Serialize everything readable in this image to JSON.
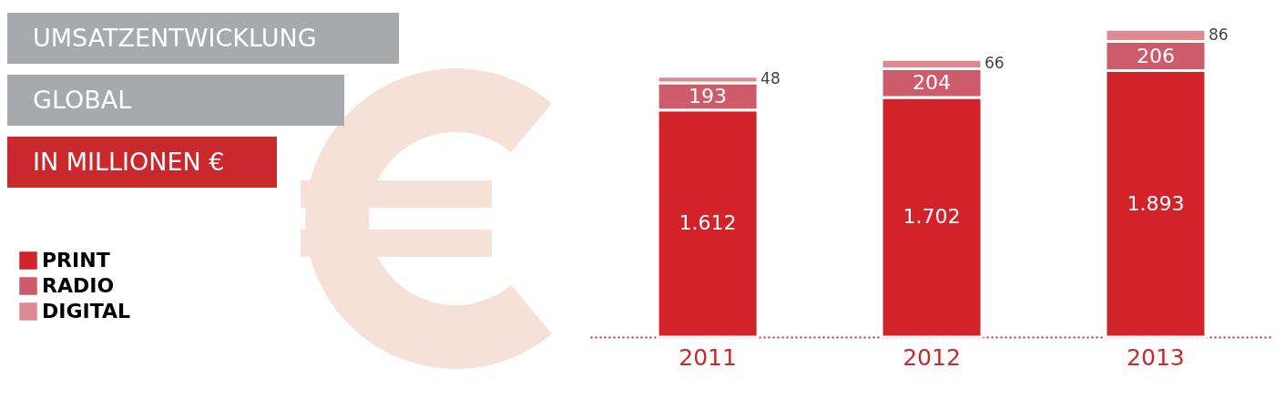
{
  "chart_data": {
    "type": "bar",
    "stacked": true,
    "title": "UMSATZENTWICKLUNG",
    "subtitle": "GLOBAL",
    "annotations": [
      "IN MILLIONEN €"
    ],
    "categories": [
      "2011",
      "2012",
      "2013"
    ],
    "legend": "bottom left",
    "series": [
      {
        "name": "PRINT",
        "color": "#d2232a",
        "values": [
          1612,
          1702,
          1893
        ],
        "value_labels": [
          "1.612",
          "1.702",
          "1.893"
        ]
      },
      {
        "name": "RADIO",
        "color": "#cd5b69",
        "values": [
          193,
          204,
          206
        ],
        "value_labels": [
          "193",
          "204",
          "206"
        ]
      },
      {
        "name": "DIGITAL",
        "color": "#dc8b95",
        "values": [
          48,
          66,
          86
        ],
        "value_labels": [
          "48",
          "66",
          "86"
        ]
      }
    ]
  }
}
